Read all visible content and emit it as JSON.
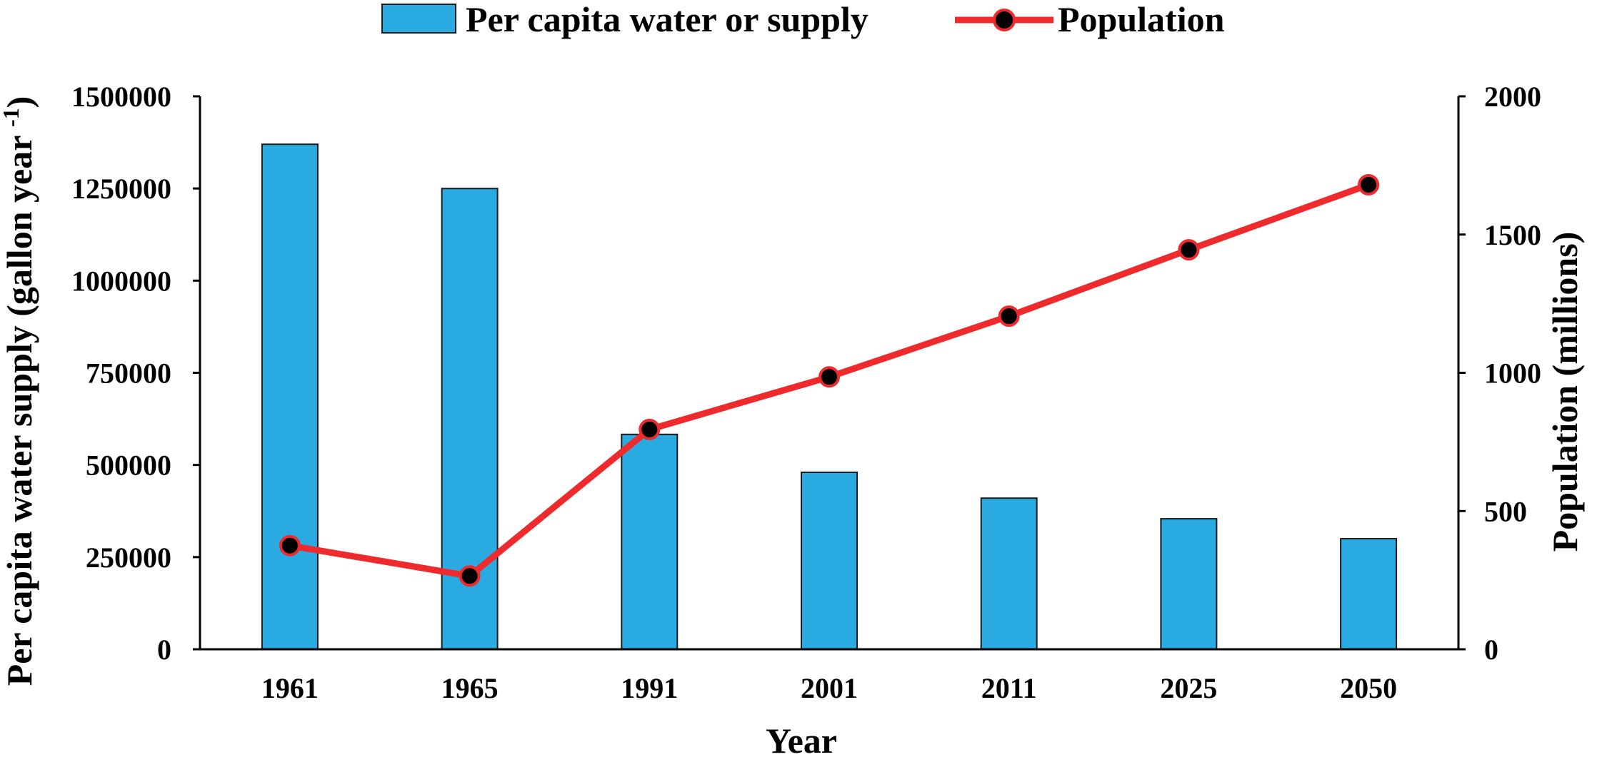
{
  "chart_data": {
    "type": "bar",
    "categories": [
      "1961",
      "1965",
      "1991",
      "2001",
      "2011",
      "2025",
      "2050"
    ],
    "series": [
      {
        "name": "Per capita water or supply",
        "kind": "bar",
        "axis": "left",
        "color": "#29ABE2",
        "values": [
          1370000,
          1250000,
          583000,
          480000,
          410000,
          354000,
          300000
        ]
      },
      {
        "name": "Population",
        "kind": "line",
        "axis": "right",
        "color": "#EE2A2C",
        "marker_color": "#000000",
        "values": [
          375,
          265,
          795,
          985,
          1205,
          1445,
          1680
        ]
      }
    ],
    "xlabel": "Year",
    "ylabel_left": "Per capita water supply (gallon year ",
    "ylabel_left_superscript": "-1",
    "ylabel_left_close": ")",
    "ylabel_right": "Population (millions)",
    "ylim_left": [
      0,
      1500000
    ],
    "ylim_right": [
      0,
      2000
    ],
    "yticks_left": [
      0,
      250000,
      500000,
      750000,
      1000000,
      1250000,
      1500000
    ],
    "yticks_right": [
      0,
      500,
      1000,
      1500,
      2000
    ],
    "grid": false,
    "legend_position": "top-center"
  }
}
